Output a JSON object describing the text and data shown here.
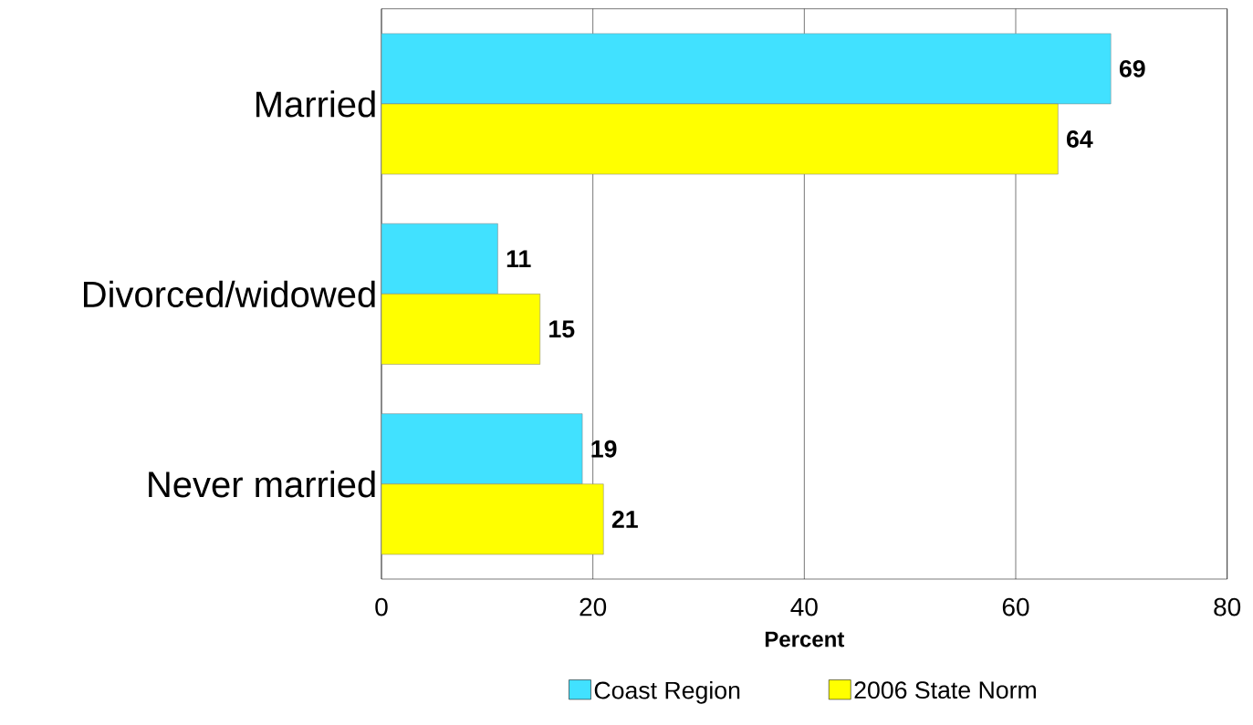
{
  "chart_data": {
    "type": "bar",
    "orientation": "horizontal",
    "categories": [
      "Married",
      "Divorced/widowed",
      "Never married"
    ],
    "series": [
      {
        "name": "Coast Region",
        "color": "#41e1ff",
        "values": [
          69,
          11,
          19
        ]
      },
      {
        "name": "2006 State Norm",
        "color": "#ffff00",
        "values": [
          64,
          15,
          21
        ]
      }
    ],
    "xlim": [
      0,
      80
    ],
    "xticks": [
      0,
      20,
      40,
      60,
      80
    ],
    "xlabel": "Percent",
    "grid": "x",
    "legend": "bottom",
    "data_labels": true
  }
}
